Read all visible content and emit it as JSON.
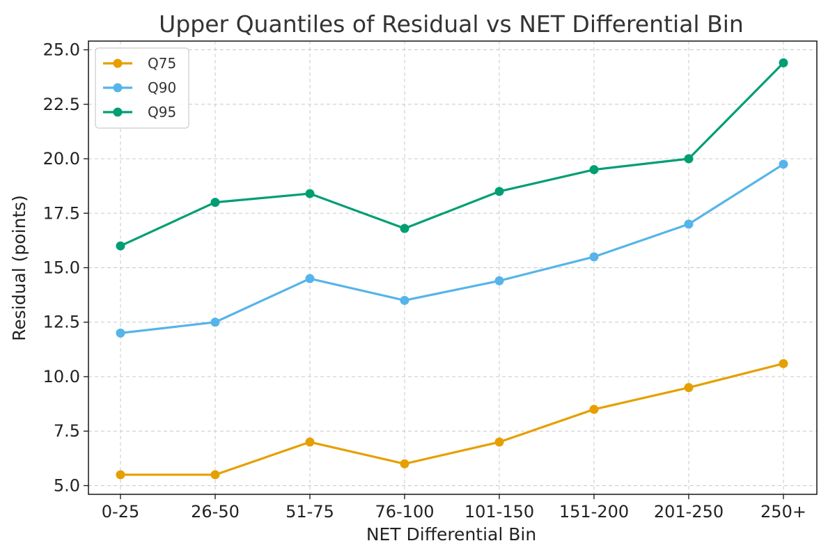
{
  "chart_data": {
    "type": "line",
    "title": "Upper Quantiles of Residual vs NET Differential Bin",
    "xlabel": "NET Differential Bin",
    "ylabel": "Residual (points)",
    "categories": [
      "0-25",
      "26-50",
      "51-75",
      "76-100",
      "101-150",
      "151-200",
      "201-250",
      "250+"
    ],
    "ylim": [
      4.6,
      25.4
    ],
    "yticks": [
      "5.0",
      "7.5",
      "10.0",
      "12.5",
      "15.0",
      "17.5",
      "20.0",
      "22.5",
      "25.0"
    ],
    "grid": true,
    "legend_position": "top-left",
    "series": [
      {
        "name": "Q75",
        "color": "#E69F00",
        "values": [
          5.5,
          5.5,
          7.0,
          6.0,
          7.0,
          8.5,
          9.5,
          10.6
        ]
      },
      {
        "name": "Q90",
        "color": "#56B4E9",
        "values": [
          12.0,
          12.5,
          14.5,
          13.5,
          14.4,
          15.5,
          17.0,
          19.75
        ]
      },
      {
        "name": "Q95",
        "color": "#009E73",
        "values": [
          16.0,
          18.0,
          18.4,
          16.8,
          18.5,
          19.5,
          20.0,
          24.4
        ]
      }
    ]
  }
}
